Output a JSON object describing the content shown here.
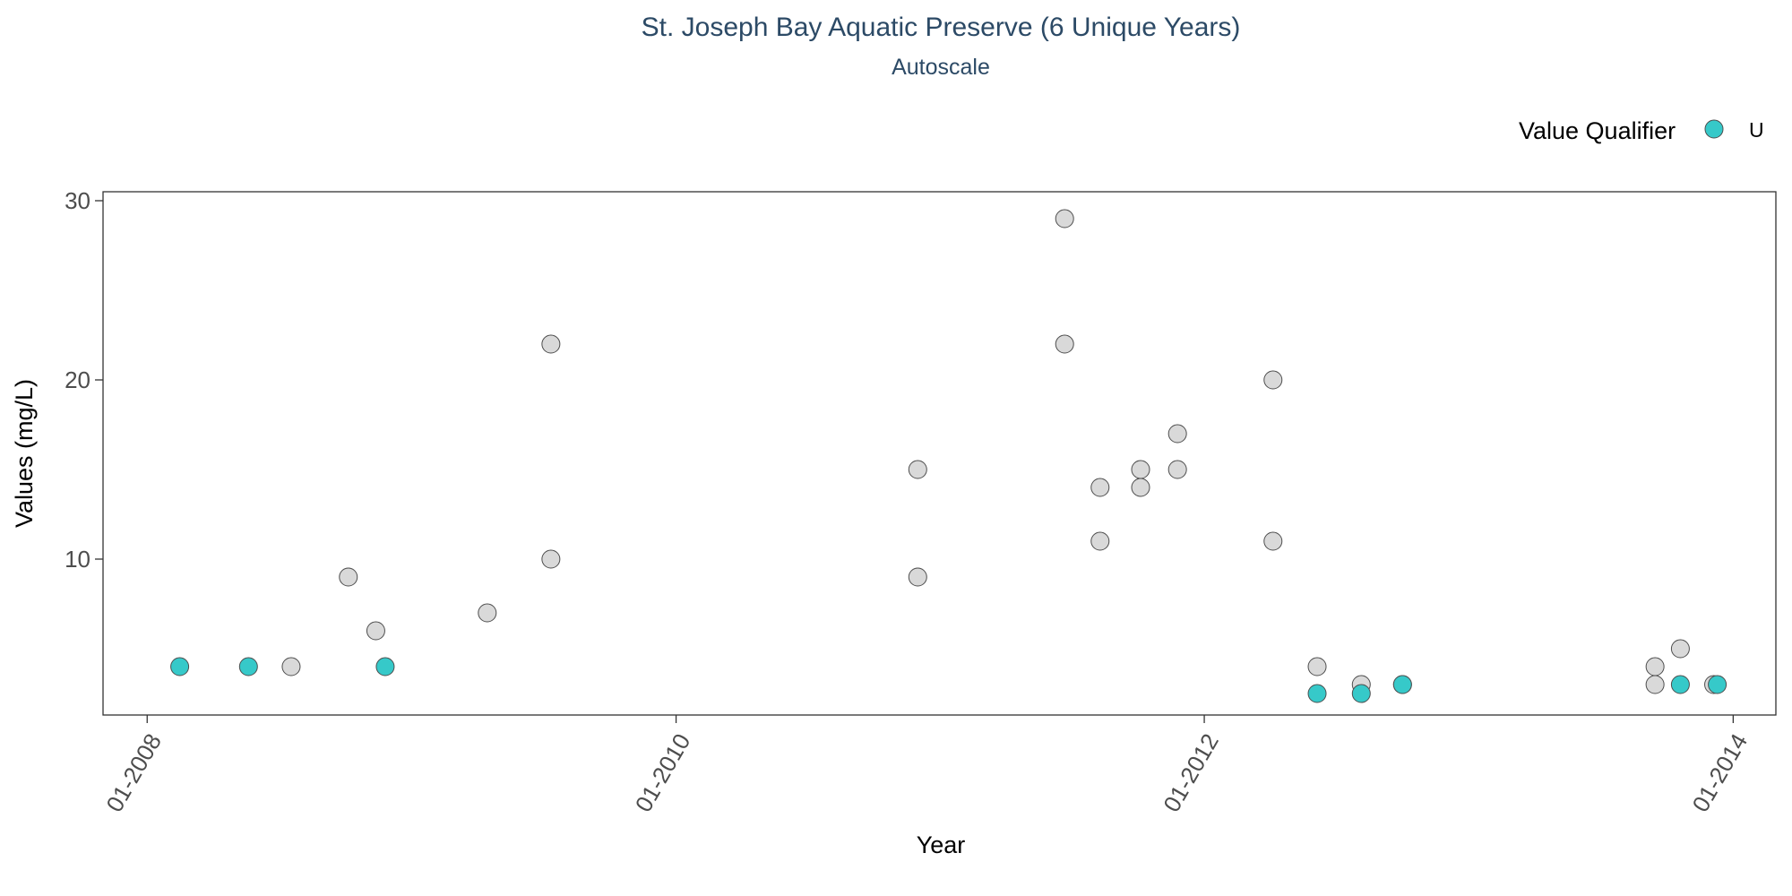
{
  "chart_data": {
    "type": "scatter",
    "title": "St. Joseph Bay Aquatic Preserve (6 Unique Years)",
    "subtitle": "Autoscale",
    "xlabel": "Year",
    "ylabel": "Values (mg/L)",
    "x_axis_type": "date",
    "xlim": [
      "2007-11-01",
      "2014-03-01"
    ],
    "ylim": [
      1.3,
      30.5
    ],
    "x_ticks": [
      {
        "value": "2008-01-01",
        "label": "01-2008"
      },
      {
        "value": "2010-01-01",
        "label": "01-2010"
      },
      {
        "value": "2012-01-01",
        "label": "01-2012"
      },
      {
        "value": "2014-01-01",
        "label": "01-2014"
      }
    ],
    "y_ticks": [
      {
        "value": 10,
        "label": "10"
      },
      {
        "value": 20,
        "label": "20"
      },
      {
        "value": 30,
        "label": "30"
      }
    ],
    "grid": false,
    "legend": {
      "title": "Value Qualifier",
      "placement": "top-right",
      "entries": [
        {
          "label": "U",
          "color": "#36c9c9"
        }
      ]
    },
    "colors": {
      "qualified": "#36c9c9",
      "unqualified": "#d9d9d9",
      "marker_stroke": "#4d4d4d",
      "title": "#2c4a66",
      "tick_label": "#4d4d4d",
      "axis_line": "#333333"
    },
    "series": [
      {
        "qualifier": "none",
        "points": [
          {
            "x": "2008-07-18",
            "y": 4
          },
          {
            "x": "2008-10-05",
            "y": 9
          },
          {
            "x": "2008-11-12",
            "y": 6
          },
          {
            "x": "2009-04-15",
            "y": 7
          },
          {
            "x": "2009-07-12",
            "y": 10
          },
          {
            "x": "2009-07-12",
            "y": 22
          },
          {
            "x": "2010-12-01",
            "y": 15
          },
          {
            "x": "2010-12-01",
            "y": 9
          },
          {
            "x": "2011-06-22",
            "y": 29
          },
          {
            "x": "2011-06-22",
            "y": 22
          },
          {
            "x": "2011-08-10",
            "y": 14
          },
          {
            "x": "2011-08-10",
            "y": 11
          },
          {
            "x": "2011-10-05",
            "y": 15
          },
          {
            "x": "2011-10-05",
            "y": 14
          },
          {
            "x": "2011-11-25",
            "y": 17
          },
          {
            "x": "2011-11-25",
            "y": 15
          },
          {
            "x": "2012-04-05",
            "y": 20
          },
          {
            "x": "2012-04-05",
            "y": 11
          },
          {
            "x": "2012-06-05",
            "y": 4
          },
          {
            "x": "2012-08-05",
            "y": 3
          },
          {
            "x": "2012-10-01",
            "y": 3
          },
          {
            "x": "2013-09-15",
            "y": 4
          },
          {
            "x": "2013-09-15",
            "y": 3
          },
          {
            "x": "2013-10-20",
            "y": 5
          },
          {
            "x": "2013-12-05",
            "y": 3
          }
        ]
      },
      {
        "qualifier": "U",
        "points": [
          {
            "x": "2008-02-15",
            "y": 4
          },
          {
            "x": "2008-05-20",
            "y": 4
          },
          {
            "x": "2008-11-25",
            "y": 4
          },
          {
            "x": "2012-06-05",
            "y": 2.5
          },
          {
            "x": "2012-08-05",
            "y": 2.5
          },
          {
            "x": "2012-10-01",
            "y": 3
          },
          {
            "x": "2013-10-20",
            "y": 3
          },
          {
            "x": "2013-12-10",
            "y": 3
          }
        ]
      }
    ]
  }
}
